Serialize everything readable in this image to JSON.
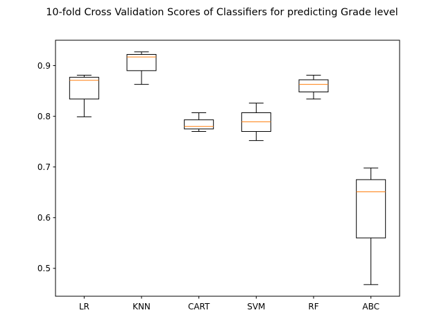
{
  "chart_data": {
    "type": "boxplot",
    "title": "10-fold Cross Validation Scores of Classifiers for predicting Grade level",
    "xlabel": "",
    "ylabel": "",
    "categories": [
      "LR",
      "KNN",
      "CART",
      "SVM",
      "RF",
      "ABC"
    ],
    "boxes": [
      {
        "name": "LR",
        "whisker_low": 0.799,
        "q1": 0.834,
        "median": 0.871,
        "q3": 0.877,
        "whisker_high": 0.881
      },
      {
        "name": "KNN",
        "whisker_low": 0.863,
        "q1": 0.89,
        "median": 0.917,
        "q3": 0.922,
        "whisker_high": 0.927
      },
      {
        "name": "CART",
        "whisker_low": 0.77,
        "q1": 0.775,
        "median": 0.78,
        "q3": 0.793,
        "whisker_high": 0.807
      },
      {
        "name": "SVM",
        "whisker_low": 0.752,
        "q1": 0.77,
        "median": 0.789,
        "q3": 0.807,
        "whisker_high": 0.826
      },
      {
        "name": "RF",
        "whisker_low": 0.834,
        "q1": 0.848,
        "median": 0.863,
        "q3": 0.872,
        "whisker_high": 0.881
      },
      {
        "name": "ABC",
        "whisker_low": 0.468,
        "q1": 0.56,
        "median": 0.651,
        "q3": 0.675,
        "whisker_high": 0.698
      }
    ],
    "ylim": [
      0.445,
      0.95
    ],
    "yticks": [
      0.5,
      0.6,
      0.7,
      0.8,
      0.9
    ],
    "ytick_labels": [
      "0.5",
      "0.6",
      "0.7",
      "0.8",
      "0.9"
    ],
    "grid": false,
    "legend": "none",
    "colors": {
      "box": "#000000",
      "median": "#ff7f0e",
      "axes": "#000000",
      "background": "#ffffff"
    }
  }
}
